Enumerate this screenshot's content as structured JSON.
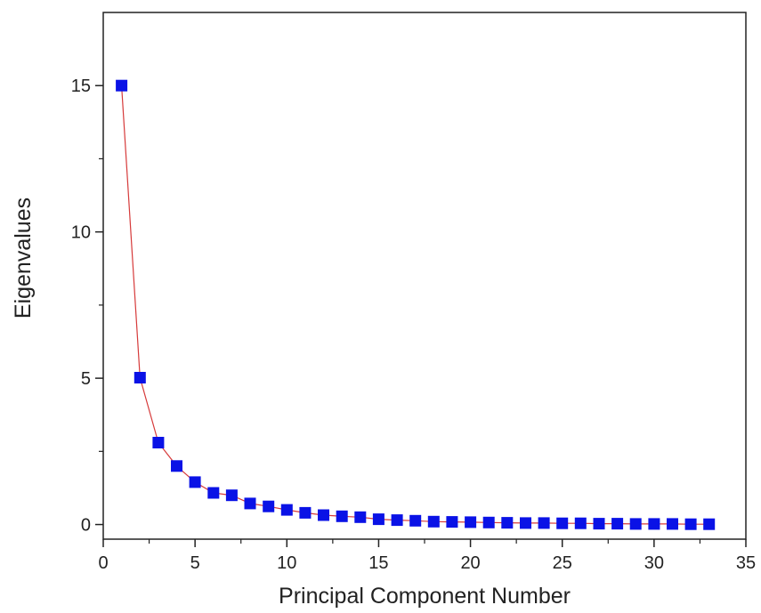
{
  "chart_data": {
    "type": "scatter",
    "title": "",
    "xlabel": "Principal Component Number",
    "ylabel": "Eigenvalues",
    "xlim": [
      0,
      35
    ],
    "ylim": [
      -0.5,
      17.5
    ],
    "xticks": [
      0,
      5,
      10,
      15,
      20,
      25,
      30,
      35
    ],
    "yticks": [
      0,
      5,
      10,
      15
    ],
    "grid": false,
    "legend": "none",
    "marker": "square",
    "connected": true,
    "colors": {
      "marker": "#0a12e6",
      "line": "#d63a3a",
      "axis": "#222222"
    },
    "series": [
      {
        "x": [
          1,
          2,
          3,
          4,
          5,
          6,
          7,
          8,
          9,
          10,
          11,
          12,
          13,
          14,
          15,
          16,
          17,
          18,
          19,
          20,
          21,
          22,
          23,
          24,
          25,
          26,
          27,
          28,
          29,
          30,
          31,
          32,
          33
        ],
        "y": [
          15.0,
          5.02,
          2.8,
          2.0,
          1.45,
          1.08,
          1.0,
          0.72,
          0.62,
          0.5,
          0.4,
          0.32,
          0.28,
          0.25,
          0.18,
          0.15,
          0.13,
          0.1,
          0.09,
          0.08,
          0.07,
          0.06,
          0.05,
          0.05,
          0.04,
          0.04,
          0.03,
          0.03,
          0.02,
          0.02,
          0.02,
          0.01,
          0.01
        ]
      }
    ]
  }
}
